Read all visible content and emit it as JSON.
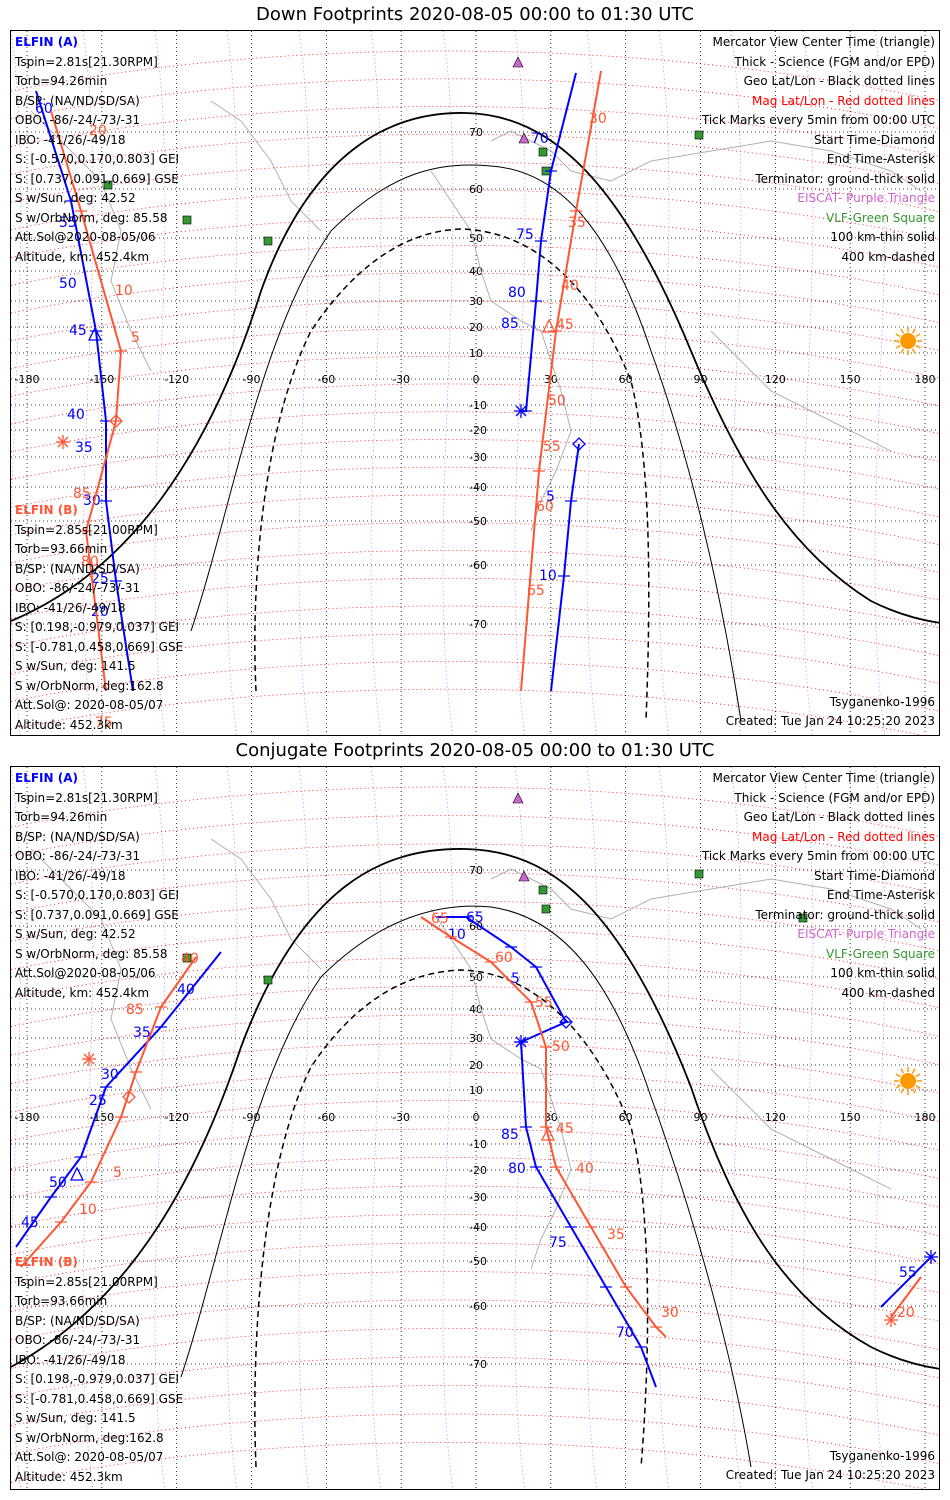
{
  "panels": [
    {
      "title": "Down Footprints 2020-08-05 00:00 to 01:30 UTC",
      "elfin_a": {
        "name": "ELFIN (A)",
        "lines": [
          "Tspin=2.81s[21.30RPM]",
          "Torb=94.26min",
          "B/SP: (NA/ND/SD/SA)",
          "OBO: -86/-24/-73/-31",
          "IBO: -41/26/-49/18",
          "S: [-0.570,0.170,0.803] GEI",
          "S: [0.737,0.091,0.669] GSE",
          "S w/Sun, deg: 42.52",
          "S w/OrbNorm, deg: 85.58",
          "Att.Sol@2020-08-05/06",
          "Altitude, km: 452.4km"
        ]
      },
      "elfin_b": {
        "name": "ELFIN (B)",
        "lines": [
          "Tspin=2.85s[21.00RPM]",
          "Torb=93.66min",
          "B/SP: (NA/ND/SD/SA)",
          "OBO: -86/-24/-73/-31",
          "IBO: -41/26/-49/18",
          "S: [0.198,-0.979,0.037] GEI",
          "S: [-0.781,0.458,0.669] GSE",
          "S w/Sun, deg: 141.5",
          "S w/OrbNorm, deg:162.8",
          "Att.Sol@: 2020-08-05/07",
          "Altitude: 452.3km"
        ]
      },
      "legend": [
        "Mercator View Center Time (triangle)",
        "Thick - Science (FGM and/or EPD)",
        "Geo Lat/Lon - Black dotted lines",
        "Mag Lat/Lon - Red dotted lines",
        "Tick Marks every 5min from 00:00 UTC",
        "Start Time-Diamond",
        "End Time-Asterisk",
        "Terminator: ground-thick solid",
        "EISCAT- Purple Triangle",
        "VLF-Green Square",
        "100 km-thin solid",
        "400 km-dashed"
      ],
      "model": "Tsyganenko-1996",
      "created": "Created: Tue Jan 24 10:25:20 2023"
    },
    {
      "title": "Conjugate Footprints 2020-08-05 00:00 to 01:30 UTC",
      "elfin_a": {
        "name": "ELFIN (A)",
        "lines": [
          "Tspin=2.81s[21.30RPM]",
          "Torb=94.26min",
          "B/SP: (NA/ND/SD/SA)",
          "OBO: -86/-24/-73/-31",
          "IBO: -41/26/-49/18",
          "S: [-0.570,0.170,0.803] GEI",
          "S: [0.737,0.091,0.669] GSE",
          "S w/Sun, deg: 42.52",
          "S w/OrbNorm, deg: 85.58",
          "Att.Sol@2020-08-05/06",
          "Altitude, km: 452.4km"
        ]
      },
      "elfin_b": {
        "name": "ELFIN (B)",
        "lines": [
          "Tspin=2.85s[21.00RPM]",
          "Torb=93.66min",
          "B/SP: (NA/ND/SD/SA)",
          "OBO: -86/-24/-73/-31",
          "IBO: -41/26/-49/18",
          "S: [0.198,-0.979,0.037] GEI",
          "S: [-0.781,0.458,0.669] GSE",
          "S w/Sun, deg: 141.5",
          "S w/OrbNorm, deg:162.8",
          "Att.Sol@: 2020-08-05/07",
          "Altitude: 452.3km"
        ]
      },
      "legend": [
        "Mercator View Center Time (triangle)",
        "Thick - Science (FGM and/or EPD)",
        "Geo Lat/Lon - Black dotted lines",
        "Mag Lat/Lon - Red dotted lines",
        "Tick Marks every 5min from 00:00 UTC",
        "Start Time-Diamond",
        "End Time-Asterisk",
        "Terminator: ground-thick solid",
        "EISCAT- Purple Triangle",
        "VLF-Green Square",
        "100 km-thin solid",
        "400 km-dashed"
      ],
      "model": "Tsyganenko-1996",
      "created": "Created: Tue Jan 24 10:25:20 2023"
    }
  ],
  "map": {
    "lon_ticks": [
      "-180",
      "-150",
      "-120",
      "-90",
      "-60",
      "-30",
      "0",
      "30",
      "60",
      "90",
      "120",
      "150",
      "180"
    ],
    "lat_ticks": [
      "70",
      "60",
      "50",
      "40",
      "30",
      "20",
      "10",
      "-10",
      "-20",
      "-30",
      "-40",
      "-50",
      "-60",
      "-70"
    ],
    "lon_range": [
      -180,
      180
    ],
    "projection": "Mercator"
  },
  "tracks": {
    "down_a_labels": [
      "60",
      "55",
      "50",
      "45",
      "40",
      "35",
      "30",
      "25",
      "20",
      "70",
      "75",
      "80",
      "85",
      "5",
      "10"
    ],
    "down_b_labels": [
      "20",
      "10",
      "5",
      "85",
      "80",
      "75",
      "30",
      "35",
      "40",
      "45",
      "50",
      "55",
      "60",
      "65"
    ],
    "conj_a_labels": [
      "65",
      "10",
      "5",
      "25",
      "30",
      "35",
      "40",
      "45",
      "50",
      "85",
      "80",
      "75",
      "70",
      "55"
    ],
    "conj_b_labels": [
      "60",
      "65",
      "55",
      "50",
      "45",
      "40",
      "35",
      "30",
      "85",
      "5",
      "10",
      "20",
      "40"
    ]
  },
  "colors": {
    "elfin_a": "#0000ff",
    "elfin_b": "#ff5533",
    "mag_grid": "#ff0000",
    "geo_grid": "#000000",
    "eiscat": "#cc66cc",
    "vlf": "#339933",
    "sun": "#ff9900",
    "coastline": "#b0b0b0"
  },
  "icons": {
    "sun": "sun-icon",
    "eiscat": "purple-triangle-icon",
    "vlf": "green-square-icon"
  }
}
